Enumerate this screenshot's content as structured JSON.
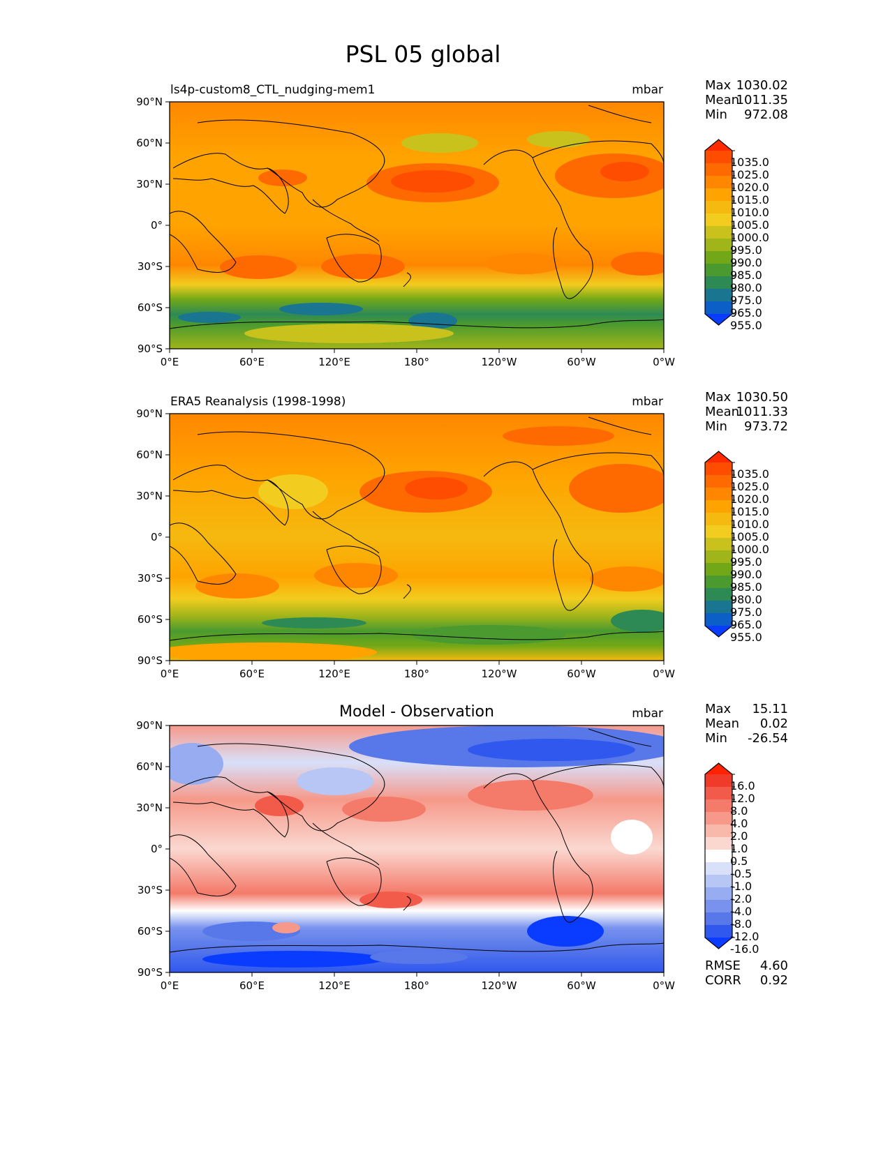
{
  "figure_title": "PSL 05 global",
  "chart_data": [
    {
      "type": "heatmap",
      "title_left": "ls4p-custom8_CTL_nudging-mem1",
      "title_right": "mbar",
      "stats": [
        {
          "label": "Max",
          "value": "1030.02"
        },
        {
          "label": "Mean",
          "value": "1011.35"
        },
        {
          "label": "Min",
          "value": "972.08"
        }
      ],
      "colorbar": {
        "labels": [
          "1035.0",
          "1025.0",
          "1020.0",
          "1015.0",
          "1010.0",
          "1005.0",
          "1000.0",
          "995.0",
          "990.0",
          "985.0",
          "980.0",
          "975.0",
          "965.0",
          "955.0"
        ],
        "colors": [
          "#ff2a00",
          "#ff4d00",
          "#ff6a00",
          "#ff8700",
          "#ffa300",
          "#f5b90f",
          "#f2cc1f",
          "#c9c21d",
          "#a0b51a",
          "#72a817",
          "#4a9a2f",
          "#2e8a55",
          "#1a7590",
          "#0d5fc8",
          "#0a3cff"
        ]
      },
      "xticks": [
        "0°E",
        "60°E",
        "120°E",
        "180°",
        "120°W",
        "60°W",
        "0°W"
      ],
      "yticks": [
        "90°N",
        "60°N",
        "30°N",
        "0°",
        "30°S",
        "60°S",
        "90°S"
      ]
    },
    {
      "type": "heatmap",
      "title_left": "ERA5 Reanalysis (1998-1998)",
      "title_right": "mbar",
      "stats": [
        {
          "label": "Max",
          "value": "1030.50"
        },
        {
          "label": "Mean",
          "value": "1011.33"
        },
        {
          "label": "Min",
          "value": "973.72"
        }
      ],
      "colorbar": {
        "labels": [
          "1035.0",
          "1025.0",
          "1020.0",
          "1015.0",
          "1010.0",
          "1005.0",
          "1000.0",
          "995.0",
          "990.0",
          "985.0",
          "980.0",
          "975.0",
          "965.0",
          "955.0"
        ],
        "colors": [
          "#ff2a00",
          "#ff4d00",
          "#ff6a00",
          "#ff8700",
          "#ffa300",
          "#f5b90f",
          "#f2cc1f",
          "#c9c21d",
          "#a0b51a",
          "#72a817",
          "#4a9a2f",
          "#2e8a55",
          "#1a7590",
          "#0d5fc8",
          "#0a3cff"
        ]
      },
      "xticks": [
        "0°E",
        "60°E",
        "120°E",
        "180°",
        "120°W",
        "60°W",
        "0°W"
      ],
      "yticks": [
        "90°N",
        "60°N",
        "30°N",
        "0°",
        "30°S",
        "60°S",
        "90°S"
      ]
    },
    {
      "type": "heatmap",
      "title_center": "Model - Observation",
      "title_right": "mbar",
      "stats": [
        {
          "label": "Max",
          "value": "15.11"
        },
        {
          "label": "Mean",
          "value": "0.02"
        },
        {
          "label": "Min",
          "value": "-26.54"
        }
      ],
      "extra_stats": [
        {
          "label": "RMSE",
          "value": "4.60"
        },
        {
          "label": "CORR",
          "value": "0.92"
        }
      ],
      "colorbar": {
        "labels": [
          "16.0",
          "12.0",
          "8.0",
          "4.0",
          "2.0",
          "1.0",
          "0.5",
          "-0.5",
          "-1.0",
          "-2.0",
          "-4.0",
          "-8.0",
          "-12.0",
          "-16.0"
        ],
        "colors": [
          "#ff2200",
          "#f03a2a",
          "#f25a4a",
          "#f47a6a",
          "#f6998a",
          "#f8b8aa",
          "#fad8d0",
          "#ffffff",
          "#d8e0fa",
          "#b8c6f6",
          "#98acf2",
          "#7892ee",
          "#5878ea",
          "#3058ef",
          "#0a3cff"
        ]
      },
      "xticks": [
        "0°E",
        "60°E",
        "120°E",
        "180°",
        "120°W",
        "60°W",
        "0°W"
      ],
      "yticks": [
        "90°N",
        "60°N",
        "30°N",
        "0°",
        "30°S",
        "60°S",
        "90°S"
      ]
    }
  ]
}
